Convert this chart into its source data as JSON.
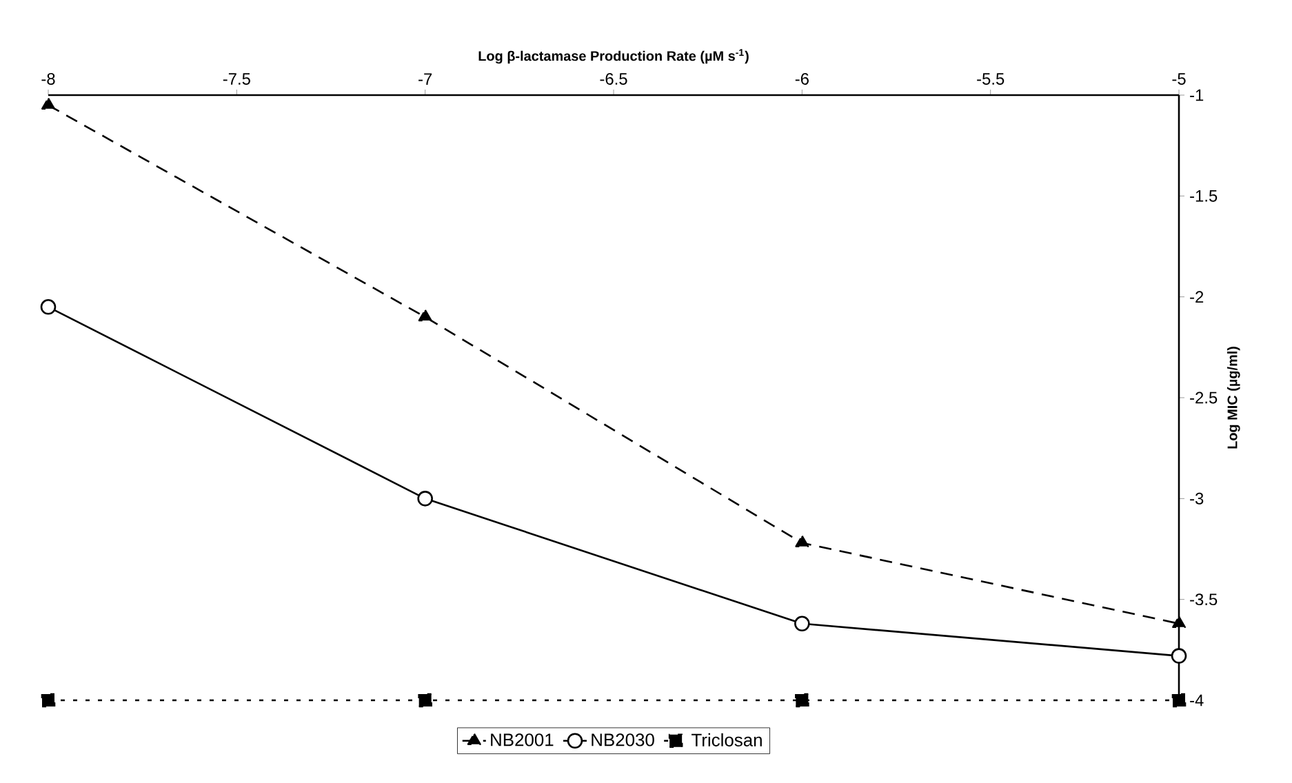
{
  "chart_data": {
    "type": "line",
    "xlabel": "Log β-lactamase Production Rate (µM s$^{-1}$)",
    "ylabel": "Log MIC (µg/ml)",
    "x": [
      -8,
      -7,
      -6,
      -5
    ],
    "series": [
      {
        "name": "NB2001",
        "color": "#000000",
        "values": [
          -1.05,
          -2.1,
          -3.22,
          -3.62
        ],
        "marker": "triangle",
        "line_style": "dashed"
      },
      {
        "name": "NB2030",
        "color": "#000000",
        "values": [
          -2.05,
          -3.0,
          -3.62,
          -3.78
        ],
        "marker": "circle",
        "line_style": "solid"
      },
      {
        "name": "Triclosan",
        "color": "#000000",
        "values": [
          -4,
          -4,
          -4,
          -4
        ],
        "marker": "square",
        "line_style": "dotted"
      }
    ],
    "xlim": [
      -8,
      -5
    ],
    "ylim": [
      -4,
      -1
    ],
    "xticks": [
      -8,
      -7.5,
      -7,
      -6.5,
      -6,
      -5.5,
      -5
    ],
    "yticks": [
      -4,
      -3.5,
      -3,
      -2.5,
      -2,
      -1.5,
      -1
    ],
    "grid": false,
    "legend": "bottom"
  }
}
